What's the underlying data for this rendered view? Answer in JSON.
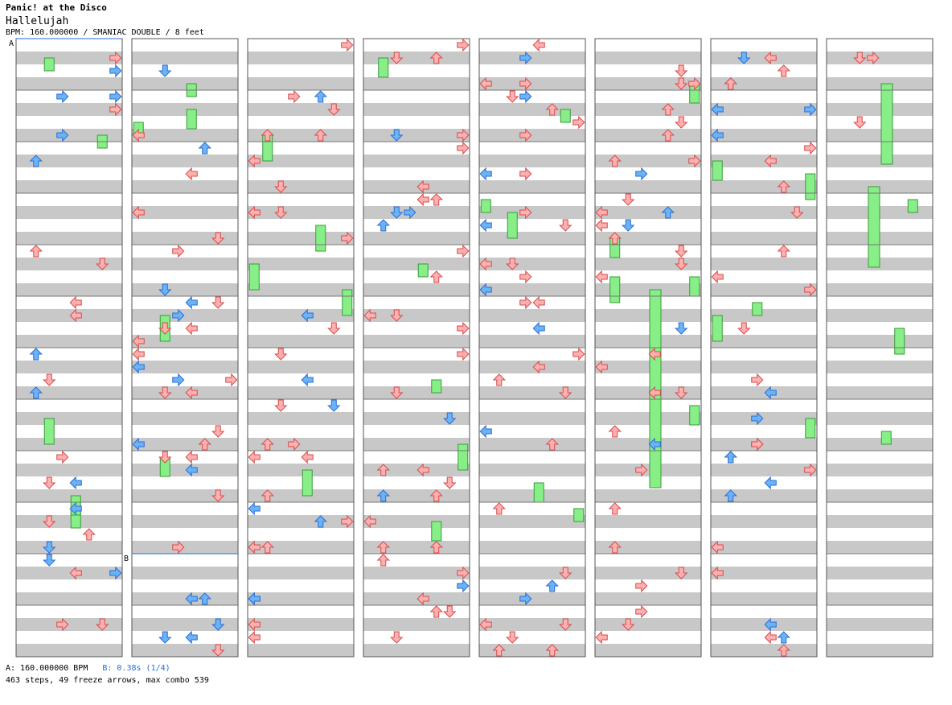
{
  "header": {
    "artist": "Panic! at the Disco",
    "title": "Hallelujah",
    "meta": "BPM: 160.000000 / SMANIAC DOUBLE / 8 feet"
  },
  "markers": {
    "a": "A",
    "b": "B"
  },
  "footer": {
    "bpm_a": "A: 160.000000 BPM",
    "bpm_b": "B: 0.38s (1/4)",
    "summary": "463 steps, 49 freeze arrows, max combo 539"
  },
  "colors": {
    "stop": "#ff9090",
    "step": "#4d9be6",
    "freeze": "#88ee88",
    "stripe": "#c8c8c8",
    "line": "#777777"
  },
  "chart_structure": {
    "columns": 8,
    "measures_per_column": 12,
    "lanes": 8
  }
}
